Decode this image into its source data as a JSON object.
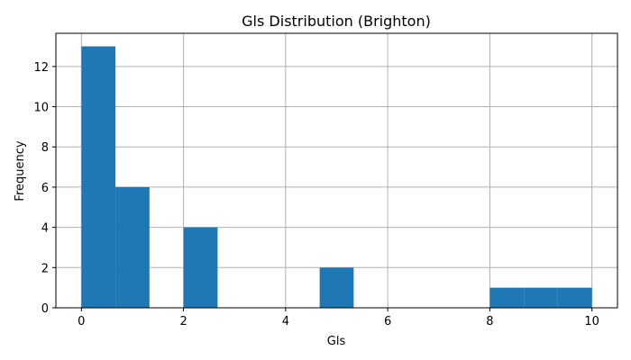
{
  "chart_data": {
    "type": "bar",
    "title": "Gls Distribution (Brighton)",
    "xlabel": "Gls",
    "ylabel": "Frequency",
    "xlim": [
      -0.5,
      10.5
    ],
    "ylim": [
      0,
      13.65
    ],
    "xticks": [
      0,
      2,
      4,
      6,
      8,
      10
    ],
    "yticks": [
      0,
      2,
      4,
      6,
      8,
      10,
      12
    ],
    "grid": true,
    "bar_color": "#1f77b4",
    "bins": [
      {
        "x0": 0.0,
        "x1": 0.667,
        "count": 13
      },
      {
        "x0": 0.667,
        "x1": 1.333,
        "count": 6
      },
      {
        "x0": 1.333,
        "x1": 2.0,
        "count": 0
      },
      {
        "x0": 2.0,
        "x1": 2.667,
        "count": 4
      },
      {
        "x0": 2.667,
        "x1": 3.333,
        "count": 0
      },
      {
        "x0": 3.333,
        "x1": 4.0,
        "count": 0
      },
      {
        "x0": 4.0,
        "x1": 4.667,
        "count": 0
      },
      {
        "x0": 4.667,
        "x1": 5.333,
        "count": 2
      },
      {
        "x0": 5.333,
        "x1": 6.0,
        "count": 0
      },
      {
        "x0": 6.0,
        "x1": 6.667,
        "count": 0
      },
      {
        "x0": 6.667,
        "x1": 7.333,
        "count": 0
      },
      {
        "x0": 7.333,
        "x1": 8.0,
        "count": 0
      },
      {
        "x0": 8.0,
        "x1": 8.667,
        "count": 1
      },
      {
        "x0": 8.667,
        "x1": 9.333,
        "count": 1
      },
      {
        "x0": 9.333,
        "x1": 10.0,
        "count": 1
      }
    ]
  }
}
